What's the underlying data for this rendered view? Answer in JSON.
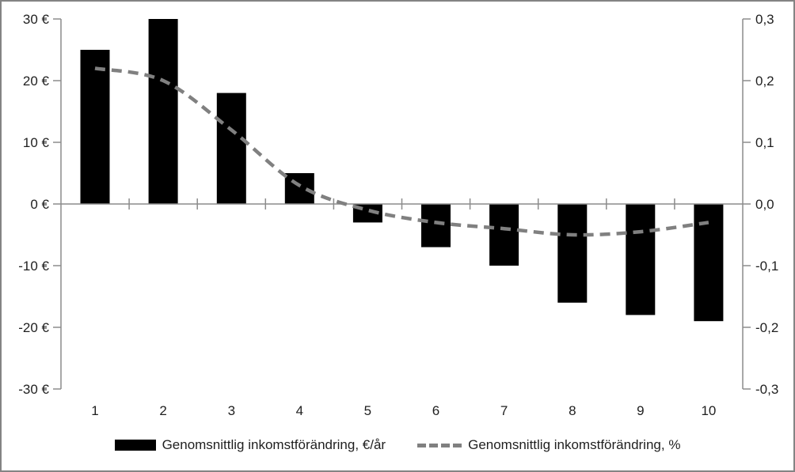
{
  "chart_data": {
    "type": "bar",
    "subtype": "combo-bar-line",
    "title": "",
    "xlabel": "",
    "ylabel_left": "",
    "ylabel_right": "",
    "categories": [
      "1",
      "2",
      "3",
      "4",
      "5",
      "6",
      "7",
      "8",
      "9",
      "10"
    ],
    "series": [
      {
        "name": "Genomsnittlig inkomstförändring, €/år",
        "kind": "bar",
        "axis": "left",
        "color": "#000000",
        "values": [
          25,
          30,
          18,
          5,
          -3,
          -7,
          -10,
          -16,
          -18,
          -19
        ]
      },
      {
        "name": "Genomsnittlig inkomstförändring, %",
        "kind": "line",
        "axis": "right",
        "color": "#808080",
        "dashed": true,
        "smooth": true,
        "values": [
          0.22,
          0.2,
          0.12,
          0.03,
          -0.01,
          -0.03,
          -0.04,
          -0.05,
          -0.045,
          -0.03
        ]
      }
    ],
    "left_axis": {
      "min": -30,
      "max": 30,
      "tick_labels": [
        "30 €",
        "20 €",
        "10 €",
        "0 €",
        "-10 €",
        "-20 €",
        "-30 €"
      ]
    },
    "right_axis": {
      "min": -0.3,
      "max": 0.3,
      "tick_labels": [
        "0,3",
        "0,2",
        "0,1",
        "0,0",
        "-0,1",
        "-0,2",
        "-0,3"
      ]
    },
    "grid": false,
    "legend_position": "bottom"
  },
  "colors": {
    "bar": "#000000",
    "line": "#808080",
    "axis": "#8c8c8c",
    "text": "#1f1f1f",
    "frame_border": "#848484",
    "background": "#ffffff"
  }
}
